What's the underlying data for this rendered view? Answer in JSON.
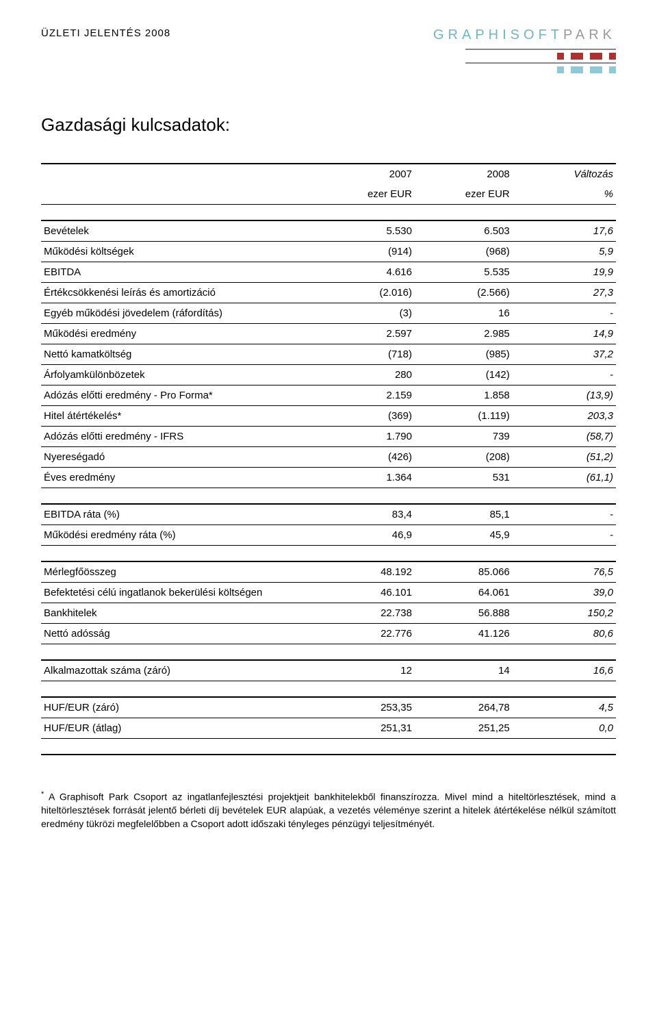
{
  "colors": {
    "logo_gs": "#6fb5c9",
    "logo_pk": "#999999",
    "dark_red": "#b03030",
    "light_blue": "#8ec9d8",
    "bar_line": "#888888",
    "text": "#000000",
    "italic_val": "#000000"
  },
  "header": {
    "report_title": "ÜZLETI JELENTÉS 2008",
    "logo_gs": "GRAPHISOFT",
    "logo_pk": "PARK"
  },
  "section_title": "Gazdasági kulcsadatok:",
  "columns": {
    "c1": "",
    "c2_top": "2007",
    "c3_top": "2008",
    "c4_top": "Változás",
    "c2_sub": "ezer EUR",
    "c3_sub": "ezer EUR",
    "c4_sub": "%"
  },
  "group1": [
    {
      "label": "Bevételek",
      "a": "5.530",
      "b": "6.503",
      "c": "17,6"
    },
    {
      "label": "Működési költségek",
      "a": "(914)",
      "b": "(968)",
      "c": "5,9"
    },
    {
      "label": "EBITDA",
      "a": "4.616",
      "b": "5.535",
      "c": "19,9"
    },
    {
      "label": "Értékcsökkenési leírás és amortizáció",
      "a": "(2.016)",
      "b": "(2.566)",
      "c": "27,3"
    },
    {
      "label": "Egyéb működési jövedelem (ráfordítás)",
      "a": "(3)",
      "b": "16",
      "c": "-"
    },
    {
      "label": "Működési eredmény",
      "a": "2.597",
      "b": "2.985",
      "c": "14,9"
    },
    {
      "label": "Nettó kamatköltség",
      "a": "(718)",
      "b": "(985)",
      "c": "37,2"
    },
    {
      "label": "Árfolyamkülönbözetek",
      "a": "280",
      "b": "(142)",
      "c": "-"
    },
    {
      "label": "Adózás előtti eredmény - Pro Forma*",
      "a": "2.159",
      "b": "1.858",
      "c": "(13,9)"
    },
    {
      "label": "Hitel átértékelés*",
      "a": "(369)",
      "b": "(1.119)",
      "c": "203,3"
    },
    {
      "label": "Adózás előtti eredmény - IFRS",
      "a": "1.790",
      "b": "739",
      "c": "(58,7)"
    },
    {
      "label": "Nyereségadó",
      "a": "(426)",
      "b": "(208)",
      "c": "(51,2)"
    },
    {
      "label": "Éves eredmény",
      "a": "1.364",
      "b": "531",
      "c": "(61,1)"
    }
  ],
  "group2": [
    {
      "label": "EBITDA ráta (%)",
      "a": "83,4",
      "b": "85,1",
      "c": "-"
    },
    {
      "label": "Működési eredmény ráta (%)",
      "a": "46,9",
      "b": "45,9",
      "c": "-"
    }
  ],
  "group3": [
    {
      "label": "Mérlegfőösszeg",
      "a": "48.192",
      "b": "85.066",
      "c": "76,5"
    },
    {
      "label": "Befektetési célú ingatlanok bekerülési költségen",
      "a": "46.101",
      "b": "64.061",
      "c": "39,0"
    },
    {
      "label": "Bankhitelek",
      "a": "22.738",
      "b": "56.888",
      "c": "150,2"
    },
    {
      "label": "Nettó adósság",
      "a": "22.776",
      "b": "41.126",
      "c": "80,6"
    }
  ],
  "group4": [
    {
      "label": "Alkalmazottak száma (záró)",
      "a": "12",
      "b": "14",
      "c": "16,6"
    }
  ],
  "group5": [
    {
      "label": "HUF/EUR (záró)",
      "a": "253,35",
      "b": "264,78",
      "c": "4,5"
    },
    {
      "label": "HUF/EUR (átlag)",
      "a": "251,31",
      "b": "251,25",
      "c": "0,0"
    }
  ],
  "footnote": "A Graphisoft Park Csoport az ingatlanfejlesztési projektjeit bankhitelekből finanszírozza. Mivel mind a hiteltörlesztések, mind a hiteltörlesztések forrását jelentő bérleti díj bevételek EUR alapúak, a vezetés véleménye szerint a hitelek átértékelése nélkül számított eredmény tükrözi megfelelőbben a Csoport adott időszaki tényleges pénzügyi teljesítményét.",
  "footnote_marker": "*"
}
